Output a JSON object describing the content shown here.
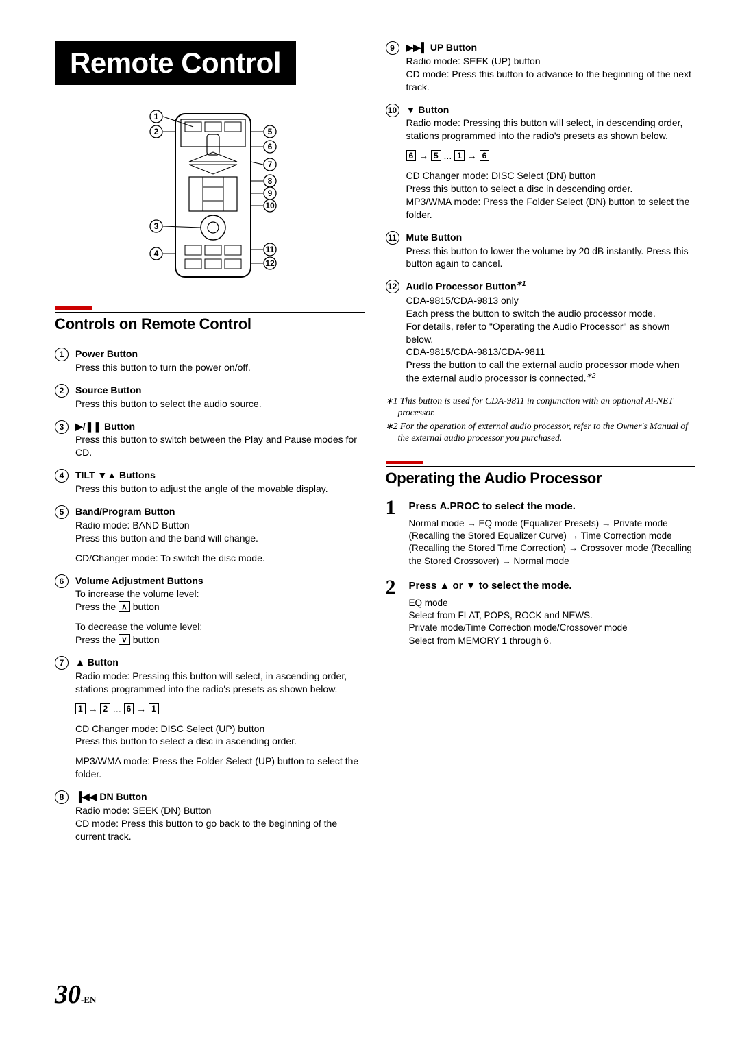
{
  "hero": "Remote Control",
  "diagram": {
    "labels": [
      "1",
      "2",
      "3",
      "4",
      "5",
      "6",
      "7",
      "8",
      "9",
      "10",
      "11",
      "12"
    ]
  },
  "section1": {
    "title": "Controls on Remote Control",
    "items": [
      {
        "n": "1",
        "title": "Power Button",
        "paras": [
          "Press this button to turn the power on/off."
        ]
      },
      {
        "n": "2",
        "title": "Source Button",
        "paras": [
          "Press this button to select the audio source."
        ]
      },
      {
        "n": "3",
        "title_prefix_sym": "▶/❚❚ ",
        "title": "Button",
        "paras": [
          "Press this button to switch between the Play and Pause modes for CD."
        ]
      },
      {
        "n": "4",
        "title_prefix": "TILT ▼▲ ",
        "title": "Buttons",
        "paras": [
          "Press this button to adjust the angle of the movable display."
        ]
      },
      {
        "n": "5",
        "title": "Band/Program Button",
        "paras": [
          "Radio mode: BAND Button\nPress this button and the band will change.",
          "CD/Changer mode: To switch the disc mode."
        ]
      },
      {
        "n": "6",
        "title": "Volume Adjustment Buttons",
        "paras_html": [
          "To increase the volume level:<br>Press the <span class=\"boxed\">∧</span> button",
          "To decrease the volume level:<br>Press the <span class=\"boxed\">∨</span> button"
        ]
      },
      {
        "n": "7",
        "title_prefix_sym": "▲ ",
        "title": "Button",
        "paras_html": [
          "Radio mode: Pressing this button will select, in ascending order, stations programmed into the radio's presets as shown below.",
          "<span class=\"boxed\">1</span> → <span class=\"boxed\">2</span> ... <span class=\"boxed\">6</span> → <span class=\"boxed\">1</span>",
          "CD Changer mode: DISC Select (UP) button<br>Press this button to select a disc in ascending order.",
          "MP3/WMA mode: Press the Folder Select (UP) button to select the folder."
        ]
      },
      {
        "n": "8",
        "title_prefix_sym": "▐◀◀ ",
        "title": "DN Button",
        "paras": [
          "Radio mode: SEEK (DN) Button\nCD mode: Press this button to go back to the beginning of the current track."
        ]
      }
    ]
  },
  "section1b": {
    "items": [
      {
        "n": "9",
        "title_prefix_sym": "▶▶▌ ",
        "title": "UP Button",
        "paras": [
          "Radio mode: SEEK (UP) button\nCD mode: Press this button to advance to the beginning of the next track."
        ]
      },
      {
        "n": "10",
        "title_prefix_sym": "▼ ",
        "title": "Button",
        "paras_html": [
          "Radio mode: Pressing this button will select, in descending order, stations programmed into the radio's presets as shown below.",
          "<span class=\"boxed\">6</span> → <span class=\"boxed\">5</span> ... <span class=\"boxed\">1</span> → <span class=\"boxed\">6</span>",
          "CD Changer mode: DISC Select (DN) button<br>Press this button to select a disc in descending order.<br>MP3/WMA mode: Press the Folder Select (DN) button to select the folder."
        ]
      },
      {
        "n": "11",
        "title": "Mute Button",
        "paras": [
          "Press this button to lower the volume by 20 dB instantly. Press this button again to cancel."
        ]
      },
      {
        "n": "12",
        "title": "Audio Processor Button",
        "title_sup": "∗1",
        "paras_html": [
          "CDA-9815/CDA-9813 only<br>Each press the button to switch the audio processor mode.<br>For details, refer to \"Operating the Audio Processor\" as shown below.<br>CDA-9815/CDA-9813/CDA-9811<br>Press the button to call the external audio processor mode when the external audio processor is connected.<span class=\"sup\">∗2</span>"
        ]
      }
    ],
    "footnotes": [
      "∗1 This button is used for CDA-9811 in conjunction with an optional Ai-NET processor.",
      "∗2 For the operation of external audio processor, refer to the Owner's Manual of the external audio processor you purchased."
    ]
  },
  "section2": {
    "title": "Operating the Audio Processor",
    "steps": [
      {
        "n": "1",
        "title_html": "Press <b>A.PROC</b> to select the mode.",
        "desc": "Normal mode → EQ mode (Equalizer Presets) → Private mode (Recalling the Stored Equalizer Curve) → Time Correction mode (Recalling the Stored Time Correction) → Crossover mode (Recalling the Stored Crossover) → Normal mode"
      },
      {
        "n": "2",
        "title_html": "Press ▲ or ▼ to select the mode.",
        "desc": "EQ mode\nSelect from FLAT, POPS, ROCK and NEWS.\nPrivate mode/Time Correction mode/Crossover mode\nSelect from MEMORY 1 through 6."
      }
    ]
  },
  "page": {
    "num": "30",
    "suffix": "-EN"
  },
  "colors": {
    "red": "#cc0000"
  }
}
